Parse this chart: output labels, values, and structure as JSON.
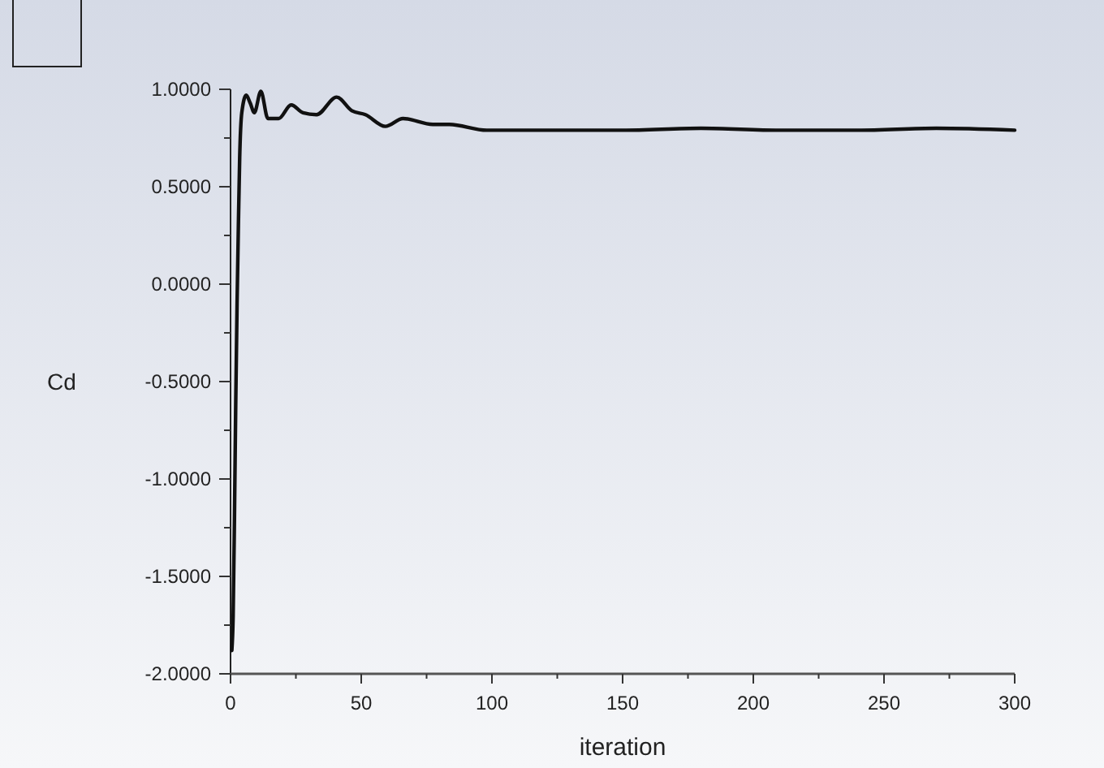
{
  "chart_data": {
    "type": "line",
    "xlabel": "iteration",
    "ylabel": "Cd",
    "xlim": [
      0,
      300
    ],
    "ylim": [
      -2,
      1
    ],
    "xticks": [
      0,
      {
        "value": 25,
        "label": null
      },
      50,
      {
        "value": 75,
        "label": null
      },
      100,
      {
        "value": 125,
        "label": null
      },
      150,
      {
        "value": 175,
        "label": null
      },
      200,
      {
        "value": 225,
        "label": null
      },
      250,
      {
        "value": 275,
        "label": null
      },
      300
    ],
    "yticks": [
      {
        "value": -2,
        "label": "-2.0000"
      },
      {
        "value": -1.75,
        "label": null
      },
      {
        "value": -1.5,
        "label": "-1.5000"
      },
      {
        "value": -1.25,
        "label": null
      },
      {
        "value": -1,
        "label": "-1.0000"
      },
      {
        "value": -0.75,
        "label": null
      },
      {
        "value": -0.5,
        "label": "-0.5000"
      },
      {
        "value": -0.25,
        "label": null
      },
      {
        "value": 0,
        "label": "0.0000"
      },
      {
        "value": 0.25,
        "label": null
      },
      {
        "value": 0.5,
        "label": "0.5000"
      },
      {
        "value": 0.75,
        "label": null
      },
      {
        "value": 1,
        "label": "1.0000"
      }
    ],
    "grid": false,
    "marker": "none",
    "line_style": "solid",
    "series": [
      {
        "color": "#111111",
        "x": [
          0.5,
          1,
          1.5,
          2,
          2.5,
          3,
          3.5,
          4.3,
          6,
          7.5,
          9.1,
          11.6,
          14.3,
          18.4,
          23.2,
          27.7,
          32.9,
          40.6,
          46.4,
          51.6,
          59.2,
          66,
          77.4,
          83.7,
          98,
          117,
          150,
          180,
          210,
          240,
          270,
          300
        ],
        "values": [
          -1.88,
          -1.7,
          -1.2,
          -0.6,
          -0.1,
          0.3,
          0.65,
          0.88,
          0.97,
          0.93,
          0.88,
          0.99,
          0.85,
          0.85,
          0.92,
          0.88,
          0.87,
          0.96,
          0.89,
          0.87,
          0.81,
          0.85,
          0.82,
          0.82,
          0.79,
          0.79,
          0.79,
          0.8,
          0.79,
          0.79,
          0.8,
          0.79
        ]
      }
    ]
  }
}
